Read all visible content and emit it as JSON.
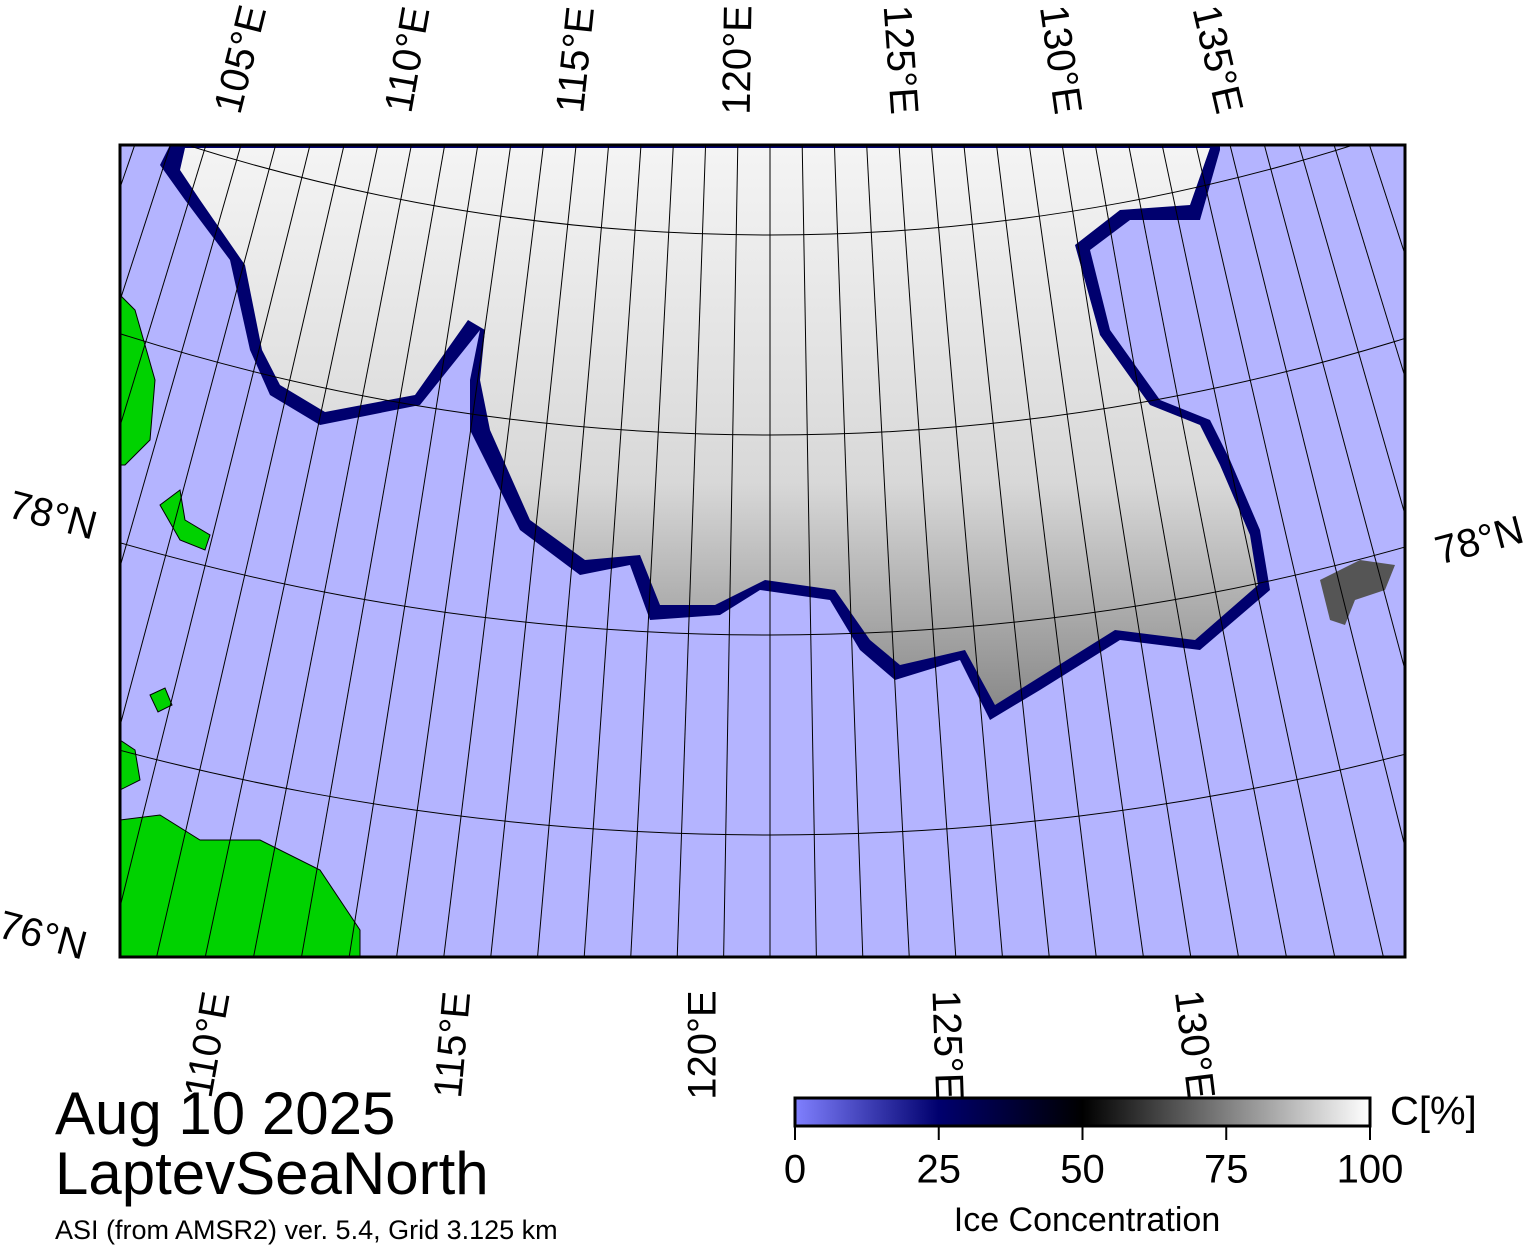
{
  "title": {
    "date": "Aug 10 2025",
    "region": "LaptevSeaNorth",
    "source": "ASI (from AMSR2) ver. 5.4,  Grid 3.125 km"
  },
  "map": {
    "top_labels": [
      "105°E",
      "110°E",
      "115°E",
      "120°E",
      "125°E",
      "130°E",
      "135°E"
    ],
    "bottom_labels": [
      "110°E",
      "115°E",
      "120°E",
      "125°E",
      "130°E"
    ],
    "left_labels": [
      "78°N",
      "76°N"
    ],
    "right_labels": [
      "78°N"
    ]
  },
  "colorbar": {
    "label": "Ice Concentration",
    "unit": "C[%]",
    "lim": [
      0,
      100
    ],
    "ticks": [
      0,
      25,
      50,
      75,
      100
    ],
    "colors": [
      "#8080ff",
      "#00006e",
      "#000000",
      "#ffffff"
    ]
  }
}
